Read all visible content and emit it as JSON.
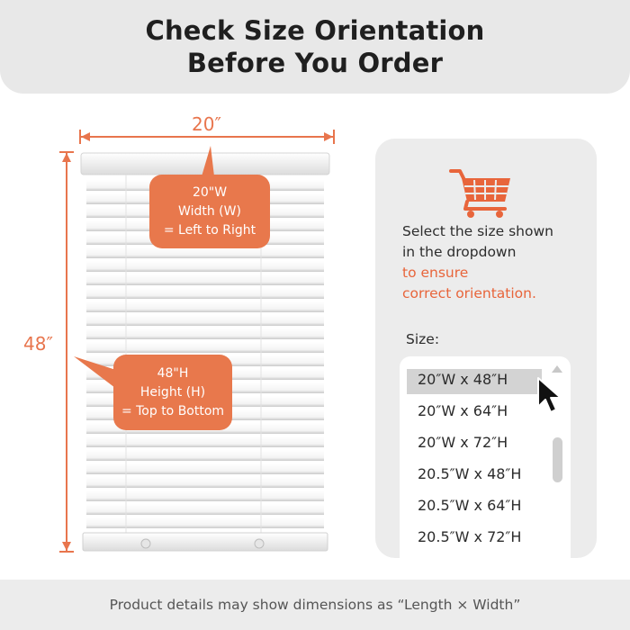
{
  "header": {
    "title_line1": "Check Size Orientation",
    "title_line2": "Before You Order"
  },
  "diagram": {
    "width_label": "20″",
    "height_label": "48″",
    "width_callout": {
      "line1": "20\"W",
      "line2": "Width (W)",
      "line3": "= Left to Right"
    },
    "height_callout": {
      "line1": "48\"H",
      "line2": "Height (H)",
      "line3": "= Top to Bottom"
    }
  },
  "panel": {
    "icon": "shopping-cart-icon",
    "instruction_line1": "Select the size shown",
    "instruction_line2": "in the dropdown",
    "instruction_line3": "to ensure",
    "instruction_line4": "correct orientation.",
    "size_label": "Size:",
    "dropdown": {
      "selected": "20″W x 48″H",
      "options": [
        "20″W x 48″H",
        "20″W x 64″H",
        "20″W x 72″H",
        "20.5″W x 48″H",
        "20.5″W x 64″H",
        "20.5″W x 72″H"
      ]
    }
  },
  "footer": {
    "note": "Product details may show dimensions as “Length × Width”"
  },
  "colors": {
    "accent": "#e8784c",
    "header_bg": "#e8e8e8",
    "panel_bg": "#ececec"
  }
}
